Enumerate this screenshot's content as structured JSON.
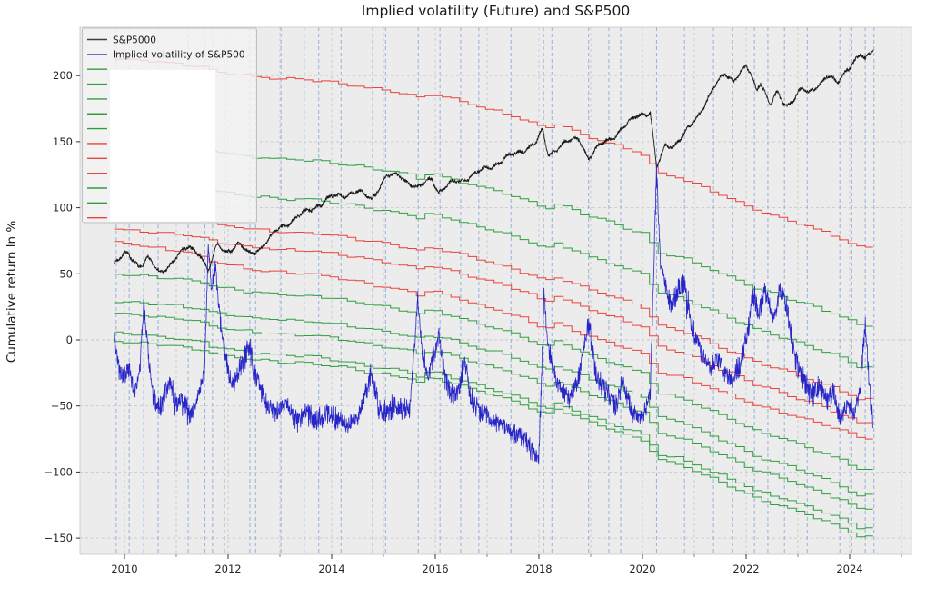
{
  "title": "Implied volatility (Future) and S&P500",
  "y_axis": {
    "label": "Cumulative return ln %",
    "ticks": [
      200,
      150,
      100,
      50,
      0,
      -50,
      -100,
      -150
    ]
  },
  "x_axis": {
    "ticks": [
      2010,
      2012,
      2014,
      2016,
      2018,
      2020,
      2022,
      2024
    ],
    "gridline_years_start": 2010,
    "gridline_years_end": 2025
  },
  "legend": {
    "visible_labels": [
      "S&P5000",
      "Implied volatility of S&P500"
    ],
    "swatch_colors": [
      "#3c3c3c",
      "#5558d0",
      "#2f9e3f",
      "#2f9e3f",
      "#2f9e3f",
      "#2f9e3f",
      "#2f9e3f",
      "#e8433c",
      "#e8433c",
      "#e8433c",
      "#2f9e3f",
      "#2f9e3f",
      "#e8433c"
    ],
    "covered_by_white_patch": true
  },
  "colors": {
    "figure_background": "#ffffff",
    "plot_background": "#ececec",
    "grid": "#c9c9c9",
    "plot_border": "#d0d0d0",
    "sp500_line": "#1a1a1a",
    "implied_vol_line": "#2724c8",
    "red_strategy": "#e8433c",
    "green_strategy": "#2f9e3f",
    "event_line": "#7b9fd4",
    "tick_label": "#262626",
    "legend_background": "rgba(243,243,243,0.82)",
    "legend_border": "#c0c0c0"
  },
  "chart_data": {
    "type": "line",
    "title": "Implied volatility (Future) and S&P500",
    "xlabel": "",
    "ylabel": "Cumulative return ln %",
    "xlim": [
      2009.14,
      2025.19
    ],
    "ylim": [
      -162,
      236
    ],
    "grid": true,
    "legend_position": "upper-left",
    "series": [
      {
        "name": "S&P5000",
        "color": "#1a1a1a",
        "width": 0.9,
        "noise_amp": 1.2,
        "anchors": [
          [
            2009.8,
            59
          ],
          [
            2010.05,
            65
          ],
          [
            2010.28,
            56
          ],
          [
            2010.45,
            62
          ],
          [
            2010.68,
            50
          ],
          [
            2010.9,
            58
          ],
          [
            2011.0,
            63
          ],
          [
            2011.25,
            70
          ],
          [
            2011.45,
            66
          ],
          [
            2011.62,
            52
          ],
          [
            2011.8,
            72
          ],
          [
            2011.95,
            67
          ],
          [
            2012.2,
            72
          ],
          [
            2012.42,
            65
          ],
          [
            2012.7,
            72
          ],
          [
            2013.0,
            85
          ],
          [
            2013.47,
            96
          ],
          [
            2014.0,
            108
          ],
          [
            2014.5,
            112
          ],
          [
            2014.77,
            107
          ],
          [
            2015.05,
            123
          ],
          [
            2015.3,
            125
          ],
          [
            2015.66,
            114
          ],
          [
            2015.93,
            123
          ],
          [
            2016.07,
            112
          ],
          [
            2016.3,
            118
          ],
          [
            2016.68,
            124
          ],
          [
            2017.0,
            130
          ],
          [
            2017.5,
            140
          ],
          [
            2017.95,
            149
          ],
          [
            2018.07,
            159
          ],
          [
            2018.18,
            140
          ],
          [
            2018.4,
            147
          ],
          [
            2018.6,
            150
          ],
          [
            2018.78,
            153
          ],
          [
            2018.96,
            137
          ],
          [
            2019.2,
            148
          ],
          [
            2019.5,
            156
          ],
          [
            2019.93,
            171
          ],
          [
            2020.15,
            172
          ],
          [
            2020.27,
            130
          ],
          [
            2020.45,
            148
          ],
          [
            2020.6,
            147
          ],
          [
            2020.8,
            155
          ],
          [
            2020.95,
            163
          ],
          [
            2021.1,
            172
          ],
          [
            2021.37,
            190
          ],
          [
            2021.5,
            197
          ],
          [
            2021.6,
            202
          ],
          [
            2021.76,
            197
          ],
          [
            2022.0,
            206
          ],
          [
            2022.1,
            200
          ],
          [
            2022.2,
            190
          ],
          [
            2022.28,
            196
          ],
          [
            2022.46,
            178
          ],
          [
            2022.6,
            186
          ],
          [
            2022.77,
            177
          ],
          [
            2023.08,
            190
          ],
          [
            2023.2,
            186
          ],
          [
            2023.56,
            200
          ],
          [
            2023.77,
            194
          ],
          [
            2023.96,
            206
          ],
          [
            2024.2,
            216
          ],
          [
            2024.3,
            211
          ],
          [
            2024.43,
            219
          ],
          [
            2024.47,
            221
          ]
        ]
      },
      {
        "name": "Implied volatility of S&P500",
        "color": "#2724c8",
        "width": 0.8,
        "noise_amp": 5.5,
        "anchors": [
          [
            2009.8,
            5
          ],
          [
            2009.85,
            -15
          ],
          [
            2009.95,
            -28
          ],
          [
            2010.1,
            -24
          ],
          [
            2010.2,
            -42
          ],
          [
            2010.3,
            -20
          ],
          [
            2010.37,
            25
          ],
          [
            2010.45,
            -5
          ],
          [
            2010.55,
            -45
          ],
          [
            2010.7,
            -52
          ],
          [
            2010.85,
            -30
          ],
          [
            2010.95,
            -42
          ],
          [
            2011.1,
            -48
          ],
          [
            2011.3,
            -55
          ],
          [
            2011.45,
            -40
          ],
          [
            2011.55,
            -20
          ],
          [
            2011.62,
            74
          ],
          [
            2011.68,
            35
          ],
          [
            2011.75,
            55
          ],
          [
            2011.82,
            25
          ],
          [
            2011.95,
            -15
          ],
          [
            2012.1,
            -35
          ],
          [
            2012.25,
            -20
          ],
          [
            2012.42,
            -5
          ],
          [
            2012.5,
            -25
          ],
          [
            2012.7,
            -45
          ],
          [
            2012.9,
            -55
          ],
          [
            2013.1,
            -48
          ],
          [
            2013.3,
            -60
          ],
          [
            2013.5,
            -55
          ],
          [
            2013.7,
            -62
          ],
          [
            2013.9,
            -55
          ],
          [
            2014.1,
            -60
          ],
          [
            2014.3,
            -65
          ],
          [
            2014.5,
            -60
          ],
          [
            2014.77,
            -25
          ],
          [
            2014.9,
            -50
          ],
          [
            2015.1,
            -55
          ],
          [
            2015.3,
            -50
          ],
          [
            2015.5,
            -55
          ],
          [
            2015.66,
            30
          ],
          [
            2015.75,
            -10
          ],
          [
            2015.85,
            -30
          ],
          [
            2016.07,
            5
          ],
          [
            2016.2,
            -30
          ],
          [
            2016.35,
            -45
          ],
          [
            2016.5,
            -30
          ],
          [
            2016.55,
            -15
          ],
          [
            2016.7,
            -45
          ],
          [
            2016.9,
            -55
          ],
          [
            2017.1,
            -60
          ],
          [
            2017.3,
            -65
          ],
          [
            2017.5,
            -70
          ],
          [
            2017.7,
            -75
          ],
          [
            2017.9,
            -85
          ],
          [
            2018.0,
            -88
          ],
          [
            2018.1,
            32
          ],
          [
            2018.15,
            5
          ],
          [
            2018.25,
            -20
          ],
          [
            2018.4,
            -35
          ],
          [
            2018.6,
            -45
          ],
          [
            2018.75,
            -30
          ],
          [
            2018.96,
            13
          ],
          [
            2019.1,
            -25
          ],
          [
            2019.3,
            -40
          ],
          [
            2019.5,
            -50
          ],
          [
            2019.62,
            -30
          ],
          [
            2019.8,
            -55
          ],
          [
            2020.0,
            -60
          ],
          [
            2020.15,
            -40
          ],
          [
            2020.27,
            127
          ],
          [
            2020.35,
            60
          ],
          [
            2020.45,
            40
          ],
          [
            2020.55,
            25
          ],
          [
            2020.65,
            35
          ],
          [
            2020.8,
            42
          ],
          [
            2020.9,
            20
          ],
          [
            2021.0,
            5
          ],
          [
            2021.15,
            -10
          ],
          [
            2021.3,
            -20
          ],
          [
            2021.45,
            -15
          ],
          [
            2021.6,
            -25
          ],
          [
            2021.75,
            -30
          ],
          [
            2021.9,
            -18
          ],
          [
            2022.05,
            10
          ],
          [
            2022.15,
            35
          ],
          [
            2022.25,
            20
          ],
          [
            2022.35,
            38
          ],
          [
            2022.45,
            25
          ],
          [
            2022.55,
            15
          ],
          [
            2022.65,
            40
          ],
          [
            2022.75,
            30
          ],
          [
            2022.85,
            10
          ],
          [
            2022.95,
            -15
          ],
          [
            2023.1,
            -30
          ],
          [
            2023.25,
            -42
          ],
          [
            2023.4,
            -35
          ],
          [
            2023.55,
            -45
          ],
          [
            2023.7,
            -40
          ],
          [
            2023.8,
            -58
          ],
          [
            2023.95,
            -50
          ],
          [
            2024.1,
            -55
          ],
          [
            2024.2,
            -40
          ],
          [
            2024.3,
            13
          ],
          [
            2024.38,
            -35
          ],
          [
            2024.45,
            -62
          ]
        ]
      }
    ],
    "strategy_lines": {
      "description": "Step-wise cumulative returns of volatility-future strategies; each declines from start value (2009.8) to end value (2024.45) following shared decline_shape",
      "start_year": 2009.8,
      "end_year": 2024.45,
      "step_years": 0.1667,
      "lines": [
        {
          "color": "#e8433c",
          "start": 213,
          "end": 70,
          "shape_exp": 1.0
        },
        {
          "color": "#2f9e3f",
          "start": 152,
          "end": 11,
          "shape_exp": 1.0
        },
        {
          "color": "#2f9e3f",
          "start": 122,
          "end": -20,
          "shape_exp": 1.0
        },
        {
          "color": "#e8433c",
          "start": 97,
          "end": -45,
          "shape_exp": 1.0
        },
        {
          "color": "#e8433c",
          "start": 84,
          "end": -63,
          "shape_exp": 1.0
        },
        {
          "color": "#e8433c",
          "start": 75,
          "end": -74,
          "shape_exp": 0.82
        },
        {
          "color": "#2f9e3f",
          "start": 50,
          "end": -98,
          "shape_exp": 1.0
        },
        {
          "color": "#2f9e3f",
          "start": 29,
          "end": -118,
          "shape_exp": 1.05
        },
        {
          "color": "#2f9e3f",
          "start": 20,
          "end": -128,
          "shape_exp": 1.0
        },
        {
          "color": "#2f9e3f",
          "start": 6,
          "end": -142,
          "shape_exp": 0.95
        },
        {
          "color": "#2f9e3f",
          "start": -1,
          "end": -149,
          "shape_exp": 1.0
        }
      ],
      "decline_shape": [
        [
          2009.8,
          0
        ],
        [
          2010.3,
          0.01
        ],
        [
          2011.0,
          0.025
        ],
        [
          2011.55,
          0.045
        ],
        [
          2011.65,
          0.06
        ],
        [
          2012.0,
          0.075
        ],
        [
          2012.5,
          0.095
        ],
        [
          2013.0,
          0.105
        ],
        [
          2013.7,
          0.115
        ],
        [
          2014.3,
          0.135
        ],
        [
          2014.8,
          0.16
        ],
        [
          2015.3,
          0.18
        ],
        [
          2015.6,
          0.195
        ],
        [
          2015.7,
          0.21
        ],
        [
          2015.95,
          0.185
        ],
        [
          2016.3,
          0.21
        ],
        [
          2016.8,
          0.25
        ],
        [
          2017.3,
          0.285
        ],
        [
          2017.8,
          0.33
        ],
        [
          2018.05,
          0.36
        ],
        [
          2018.12,
          0.385
        ],
        [
          2018.35,
          0.345
        ],
        [
          2018.7,
          0.38
        ],
        [
          2018.97,
          0.41
        ],
        [
          2019.3,
          0.44
        ],
        [
          2019.6,
          0.465
        ],
        [
          2019.95,
          0.5
        ],
        [
          2020.15,
          0.515
        ],
        [
          2020.28,
          0.6
        ],
        [
          2020.5,
          0.62
        ],
        [
          2020.8,
          0.635
        ],
        [
          2021.0,
          0.66
        ],
        [
          2021.4,
          0.705
        ],
        [
          2021.8,
          0.75
        ],
        [
          2022.0,
          0.775
        ],
        [
          2022.2,
          0.8
        ],
        [
          2022.5,
          0.825
        ],
        [
          2022.8,
          0.85
        ],
        [
          2023.0,
          0.868
        ],
        [
          2023.3,
          0.895
        ],
        [
          2023.6,
          0.925
        ],
        [
          2023.9,
          0.955
        ],
        [
          2024.1,
          0.985
        ],
        [
          2024.22,
          1.0
        ],
        [
          2024.45,
          1.0
        ]
      ]
    },
    "event_vlines_years": [
      2009.84,
      2010.09,
      2010.37,
      2010.65,
      2011.23,
      2011.55,
      2011.7,
      2011.93,
      2012.42,
      2012.53,
      2013.02,
      2013.47,
      2013.75,
      2014.18,
      2014.79,
      2015.04,
      2015.67,
      2016.09,
      2016.49,
      2016.84,
      2017.46,
      2018.09,
      2018.25,
      2018.96,
      2019.35,
      2019.58,
      2020.27,
      2020.81,
      2021.37,
      2021.74,
      2022.16,
      2022.42,
      2022.74,
      2023.18,
      2023.81,
      2024.04,
      2024.3,
      2024.47
    ]
  }
}
